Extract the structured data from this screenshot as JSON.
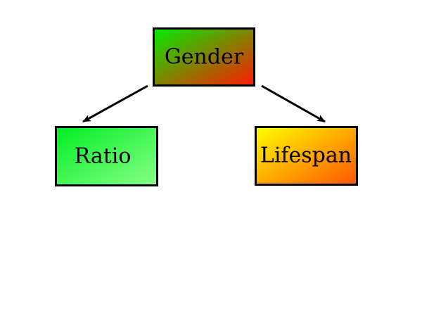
{
  "diagram": {
    "type": "tree",
    "nodes": {
      "root": {
        "label": "Gender",
        "fill_from": "#00ee00",
        "fill_to": "#ff1a00"
      },
      "left": {
        "label": "Ratio",
        "fill_from": "#00ee22",
        "fill_to": "#88ff88"
      },
      "right": {
        "label": "Lifespan",
        "fill_from": "#ffff00",
        "fill_to": "#ff5500"
      }
    },
    "edges": [
      {
        "from": "Gender",
        "to": "Ratio"
      },
      {
        "from": "Gender",
        "to": "Lifespan"
      }
    ],
    "line_color": "#000000"
  }
}
